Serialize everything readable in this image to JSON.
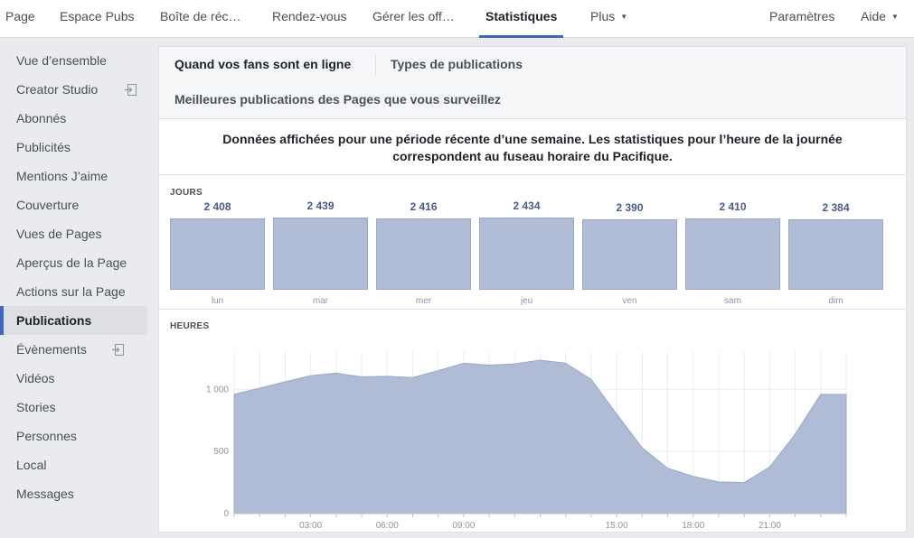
{
  "nav": {
    "items": [
      {
        "label": "Page"
      },
      {
        "label": "Espace Pubs"
      },
      {
        "label": "Boîte de réc…"
      },
      {
        "label": "Rendez-vous"
      },
      {
        "label": "Gérer les off…"
      },
      {
        "label": "Statistiques",
        "active": true
      },
      {
        "label": "Plus"
      }
    ],
    "settings": "Paramètres",
    "help": "Aide"
  },
  "sidebar": {
    "items": [
      {
        "label": "Vue d’ensemble"
      },
      {
        "label": "Creator Studio",
        "icon": "exit-icon"
      },
      {
        "label": "Abonnés"
      },
      {
        "label": "Publicités"
      },
      {
        "label": "Mentions J’aime"
      },
      {
        "label": "Couverture"
      },
      {
        "label": "Vues de Pages"
      },
      {
        "label": "Aperçus de la Page"
      },
      {
        "label": "Actions sur la Page"
      },
      {
        "label": "Publications",
        "active": true
      },
      {
        "label": "Évènements",
        "icon": "exit-icon"
      },
      {
        "label": "Vidéos"
      },
      {
        "label": "Stories"
      },
      {
        "label": "Personnes"
      },
      {
        "label": "Local"
      },
      {
        "label": "Messages"
      }
    ]
  },
  "tabs": {
    "fans_online": "Quand vos fans sont en ligne",
    "post_types": "Types de publications",
    "top_posts": "Meilleures publications des Pages que vous surveillez"
  },
  "notice": {
    "line1": "Données affichées pour une période récente d’une semaine. Les statistiques pour l’heure de la journée",
    "line2": "correspondent au fuseau horaire du Pacifique."
  },
  "days_label": "JOURS",
  "hours_label": "HEURES",
  "colors": {
    "accent": "#4267b2",
    "bar_fill": "#b0bcd6",
    "area_fill": "#b0bcd6"
  },
  "chart_data": [
    {
      "type": "bar",
      "categories": [
        "lun",
        "mar",
        "mer",
        "jeu",
        "ven",
        "sam",
        "dim"
      ],
      "values": [
        2408,
        2439,
        2416,
        2434,
        2390,
        2410,
        2384
      ],
      "value_labels": [
        "2 408",
        "2 439",
        "2 416",
        "2 434",
        "2 390",
        "2 410",
        "2 384"
      ]
    },
    {
      "type": "area",
      "x": [
        0,
        1,
        2,
        3,
        4,
        5,
        6,
        7,
        8,
        9,
        10,
        11,
        12,
        13,
        14,
        15,
        16,
        17,
        18,
        19,
        20,
        21,
        22,
        23,
        24
      ],
      "values": [
        960,
        1010,
        1060,
        1110,
        1130,
        1100,
        1105,
        1095,
        1150,
        1210,
        1195,
        1205,
        1235,
        1210,
        1080,
        800,
        530,
        365,
        300,
        255,
        250,
        375,
        640,
        960,
        960
      ],
      "ylim": [
        0,
        1300
      ],
      "yticks": [
        0,
        500,
        1000
      ],
      "ytick_labels": [
        "0",
        "500",
        "1 000"
      ],
      "xtick_labels": [
        {
          "x": 3,
          "label": "03:00"
        },
        {
          "x": 6,
          "label": "06:00"
        },
        {
          "x": 9,
          "label": "09:00"
        },
        {
          "x": 15,
          "label": "15:00"
        },
        {
          "x": 18,
          "label": "18:00"
        },
        {
          "x": 21,
          "label": "21:00"
        }
      ]
    }
  ]
}
